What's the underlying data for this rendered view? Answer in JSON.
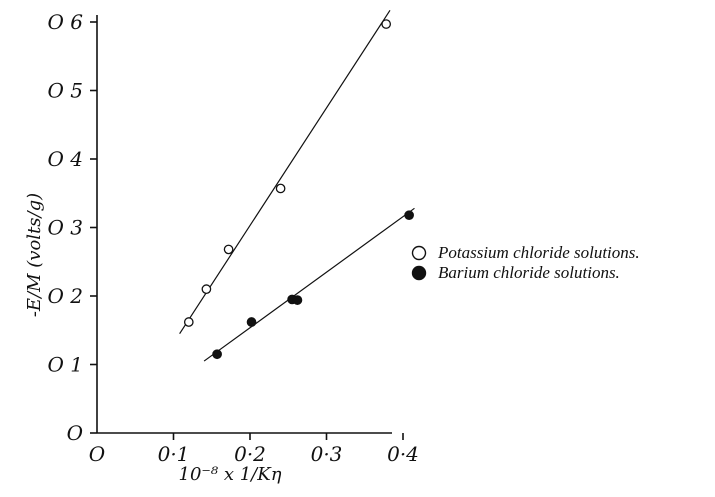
{
  "chart_data": {
    "type": "scatter",
    "xlabel": "10⁻⁸ x 1/Kη",
    "ylabel": "-E/M (volts/g)",
    "xlim": [
      0,
      0.45
    ],
    "ylim": [
      0,
      0.62
    ],
    "x_ticks": [
      {
        "value": 0,
        "label": "O"
      },
      {
        "value": 0.1,
        "label": "0·1"
      },
      {
        "value": 0.2,
        "label": "0·2"
      },
      {
        "value": 0.3,
        "label": "0·3"
      },
      {
        "value": 0.4,
        "label": "0·4"
      }
    ],
    "y_ticks": [
      {
        "value": 0,
        "label": "O"
      },
      {
        "value": 0.1,
        "label": "O 1"
      },
      {
        "value": 0.2,
        "label": "O 2"
      },
      {
        "value": 0.3,
        "label": "O 3"
      },
      {
        "value": 0.4,
        "label": "O 4"
      },
      {
        "value": 0.5,
        "label": "O 5"
      },
      {
        "value": 0.6,
        "label": "O 6"
      }
    ],
    "grid": false,
    "legend_position": "right",
    "series": [
      {
        "name": "Potassium chloride solutions.",
        "marker": "open-circle",
        "color": "#111111",
        "points": [
          {
            "x": 0.12,
            "y": 0.162
          },
          {
            "x": 0.143,
            "y": 0.21
          },
          {
            "x": 0.172,
            "y": 0.268
          },
          {
            "x": 0.24,
            "y": 0.357
          },
          {
            "x": 0.378,
            "y": 0.597
          }
        ],
        "fit_line": {
          "x": [
            0.108,
            0.383
          ],
          "y": [
            0.145,
            0.617
          ]
        }
      },
      {
        "name": "Barium chloride solutions.",
        "marker": "filled-circle",
        "color": "#111111",
        "points": [
          {
            "x": 0.157,
            "y": 0.115
          },
          {
            "x": 0.202,
            "y": 0.162
          },
          {
            "x": 0.255,
            "y": 0.195
          },
          {
            "x": 0.262,
            "y": 0.194
          },
          {
            "x": 0.408,
            "y": 0.318
          }
        ],
        "fit_line": {
          "x": [
            0.14,
            0.415
          ],
          "y": [
            0.105,
            0.328
          ]
        }
      }
    ]
  }
}
